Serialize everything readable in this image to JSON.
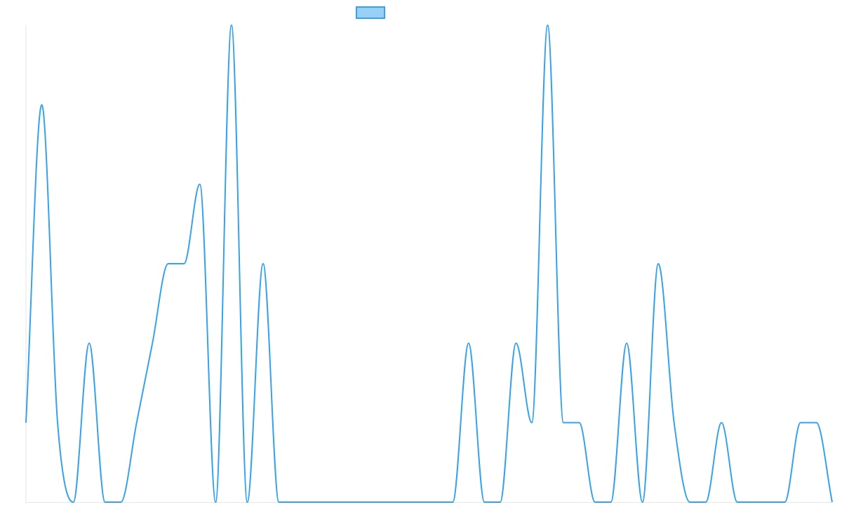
{
  "chart_data": {
    "type": "line",
    "title": "",
    "xlabel": "",
    "ylabel": "",
    "x": [
      0,
      1,
      2,
      3,
      4,
      5,
      6,
      7,
      8,
      9,
      10,
      11,
      12,
      13,
      14,
      15,
      16,
      17,
      18,
      19,
      20,
      21,
      22,
      23,
      24,
      25,
      26,
      27,
      28,
      29,
      30,
      31,
      32,
      33,
      34,
      35,
      36,
      37,
      38,
      39,
      40,
      41,
      42,
      43,
      44,
      45,
      46,
      47,
      48,
      49,
      50,
      51
    ],
    "series": [
      {
        "name": "",
        "values": [
          1,
          5,
          1,
          0,
          2,
          0,
          0,
          1,
          2,
          3,
          3,
          4,
          0,
          6,
          0,
          3,
          0,
          0,
          0,
          0,
          0,
          0,
          0,
          0,
          0,
          0,
          0,
          0,
          2,
          0,
          0,
          2,
          1,
          6,
          1,
          1,
          0,
          0,
          2,
          0,
          3,
          1,
          0,
          0,
          1,
          0,
          0,
          0,
          0,
          1,
          1,
          0
        ]
      }
    ],
    "ylim": [
      0,
      6
    ],
    "grid": false,
    "legend": "top-center",
    "colors": {
      "line": "#36a2eb",
      "legend_fill": "#9ad0f5",
      "axis": "#e5e5e5"
    }
  }
}
